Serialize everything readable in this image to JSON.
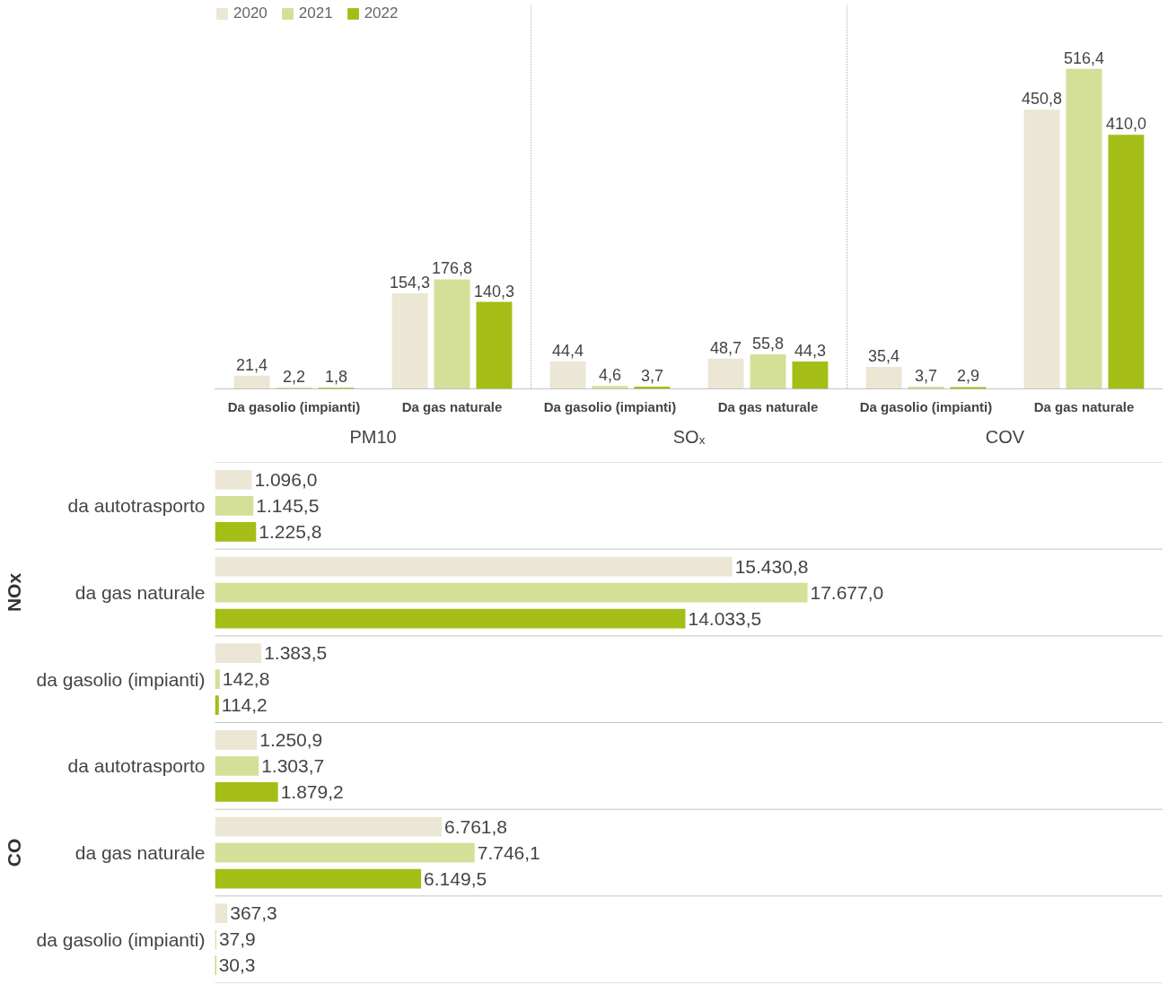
{
  "chart_data": [
    {
      "type": "bar",
      "categories": [
        "Da gasolio (impianti)",
        "Da gas naturale",
        "Da gasolio (impianti)",
        "Da gas naturale",
        "Da gasolio (impianti)",
        "Da gas naturale"
      ],
      "annotations": [
        "PM10",
        "SOₓ",
        "COV"
      ],
      "series": [
        {
          "name": "2020",
          "color": "#ece6d4",
          "values": [
            21.4,
            154.3,
            44.4,
            48.7,
            35.4,
            450.8
          ],
          "value_labels": [
            "21,4",
            "154,3",
            "44,4",
            "48,7",
            "35,4",
            "450,8"
          ]
        },
        {
          "name": "2021",
          "color": "#d4df98",
          "values": [
            2.2,
            176.8,
            4.6,
            55.8,
            3.7,
            516.4
          ],
          "value_labels": [
            "2,2",
            "176,8",
            "4,6",
            "55,8",
            "3,7",
            "516,4"
          ]
        },
        {
          "name": "2022",
          "color": "#a5bd17",
          "values": [
            1.8,
            140.3,
            3.7,
            44.3,
            2.9,
            410.0
          ],
          "value_labels": [
            "1,8",
            "140,3",
            "3,7",
            "44,3",
            "2,9",
            "410,0"
          ]
        }
      ],
      "legend": "top left",
      "grid": false
    },
    {
      "type": "bar",
      "orientation": "horizontal",
      "categories": [
        "da autotrasporto",
        "da gas naturale",
        "da gasolio (impianti)",
        "da autotrasporto",
        "da gas naturale",
        "da gasolio (impianti)"
      ],
      "annotations": [
        "NOx",
        "CO"
      ],
      "series": [
        {
          "color": "#ece6d4",
          "values": [
            1096.0,
            15430.8,
            1383.5,
            1250.9,
            6761.8,
            367.3
          ],
          "value_labels": [
            "1.096,0",
            "15.430,8",
            "1.383,5",
            "1.250,9",
            "6.761,8",
            "367,3"
          ]
        },
        {
          "color": "#d4df98",
          "values": [
            1145.5,
            17677.0,
            142.8,
            1303.7,
            7746.1,
            37.9
          ],
          "value_labels": [
            "1.145,5",
            "17.677,0",
            "142,8",
            "1.303,7",
            "7.746,1",
            "37,9"
          ]
        },
        {
          "color": "#a5bd17",
          "values": [
            1225.8,
            14033.5,
            114.2,
            1879.2,
            6149.5,
            30.3
          ],
          "value_labels": [
            "1.225,8",
            "14.033,5",
            "114,2",
            "1.879,2",
            "6.149,5",
            "30,3"
          ]
        }
      ],
      "grid": false
    }
  ]
}
